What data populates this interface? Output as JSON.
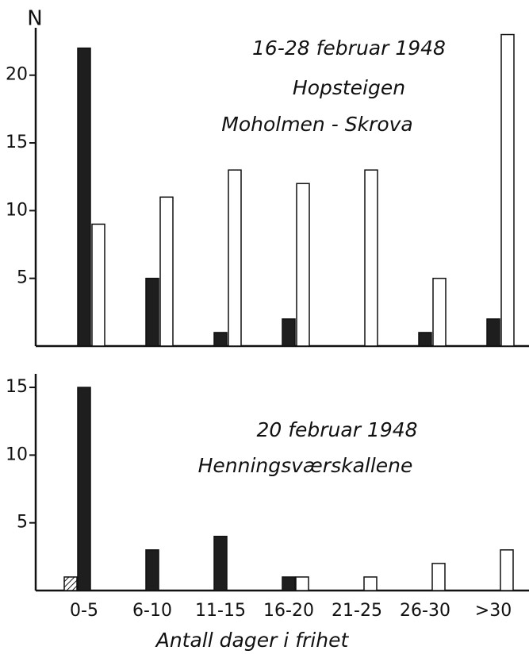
{
  "chart_data": [
    {
      "type": "bar",
      "ylabel": "N",
      "annotations": [
        "16-28 februar 1948",
        "Hopsteigen",
        "Moholmen - Skrova"
      ],
      "series": [
        {
          "color": "#1e1e1e",
          "values": [
            22,
            5,
            1,
            2,
            0,
            1,
            2
          ]
        },
        {
          "color": "#ffffff",
          "values": [
            9,
            11,
            13,
            12,
            13,
            5,
            23
          ]
        }
      ],
      "ylim": [
        0,
        23.5
      ],
      "yticks": [
        5,
        10,
        15,
        20
      ]
    },
    {
      "type": "bar",
      "xlabel": "Antall dager i frihet",
      "annotations": [
        "20 februar 1948",
        "Henningsværskallene"
      ],
      "categories": [
        "0-5",
        "6-10",
        "11-15",
        "16-20",
        "21-25",
        "26-30",
        ">30"
      ],
      "series": [
        {
          "color": "#ffffff",
          "pattern": "hatch",
          "values": [
            1,
            0,
            0,
            0,
            0,
            0,
            0
          ]
        },
        {
          "color": "#1e1e1e",
          "values": [
            15,
            3,
            4,
            1,
            0,
            0,
            0
          ]
        },
        {
          "color": "#ffffff",
          "values": [
            0,
            0,
            0,
            1,
            1,
            2,
            3
          ]
        }
      ],
      "ylim": [
        0,
        16
      ],
      "yticks": [
        5,
        10,
        15
      ]
    }
  ]
}
